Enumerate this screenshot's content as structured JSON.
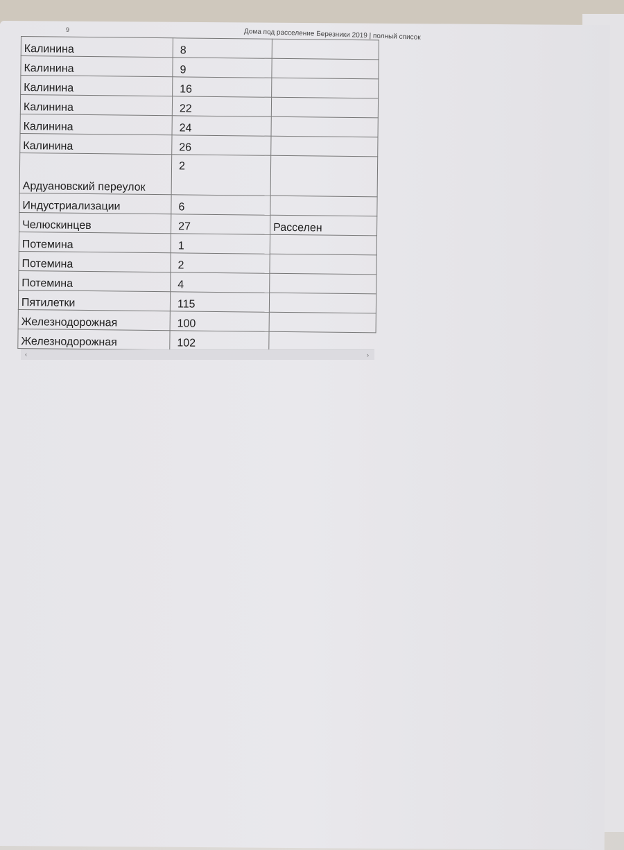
{
  "header": {
    "left_fragment": "9",
    "title": "Дома под расселение Березники 2019 | полный список"
  },
  "rows": [
    {
      "street": "Калинина",
      "number": "8",
      "status": ""
    },
    {
      "street": "Калинина",
      "number": "9",
      "status": ""
    },
    {
      "street": "Калинина",
      "number": "16",
      "status": ""
    },
    {
      "street": "Калинина",
      "number": "22",
      "status": ""
    },
    {
      "street": "Калинина",
      "number": "24",
      "status": ""
    },
    {
      "street": "Калинина",
      "number": "26",
      "status": ""
    },
    {
      "street": "Ардуановский переулок",
      "number": "2",
      "status": ""
    },
    {
      "street": "Индустриализации",
      "number": "6",
      "status": ""
    },
    {
      "street": "Челюскинцев",
      "number": "27",
      "status": "Расселен"
    },
    {
      "street": "Потемина",
      "number": "1",
      "status": ""
    },
    {
      "street": "Потемина",
      "number": "2",
      "status": ""
    },
    {
      "street": "Потемина",
      "number": "4",
      "status": ""
    },
    {
      "street": "Пятилетки",
      "number": "115",
      "status": ""
    },
    {
      "street": "Железнодорожная",
      "number": "100",
      "status": ""
    },
    {
      "street": "Железнодорожная",
      "number": "102",
      "status": null
    }
  ],
  "scrollbar": {
    "left_arrow": "‹",
    "right_arrow": "›"
  }
}
